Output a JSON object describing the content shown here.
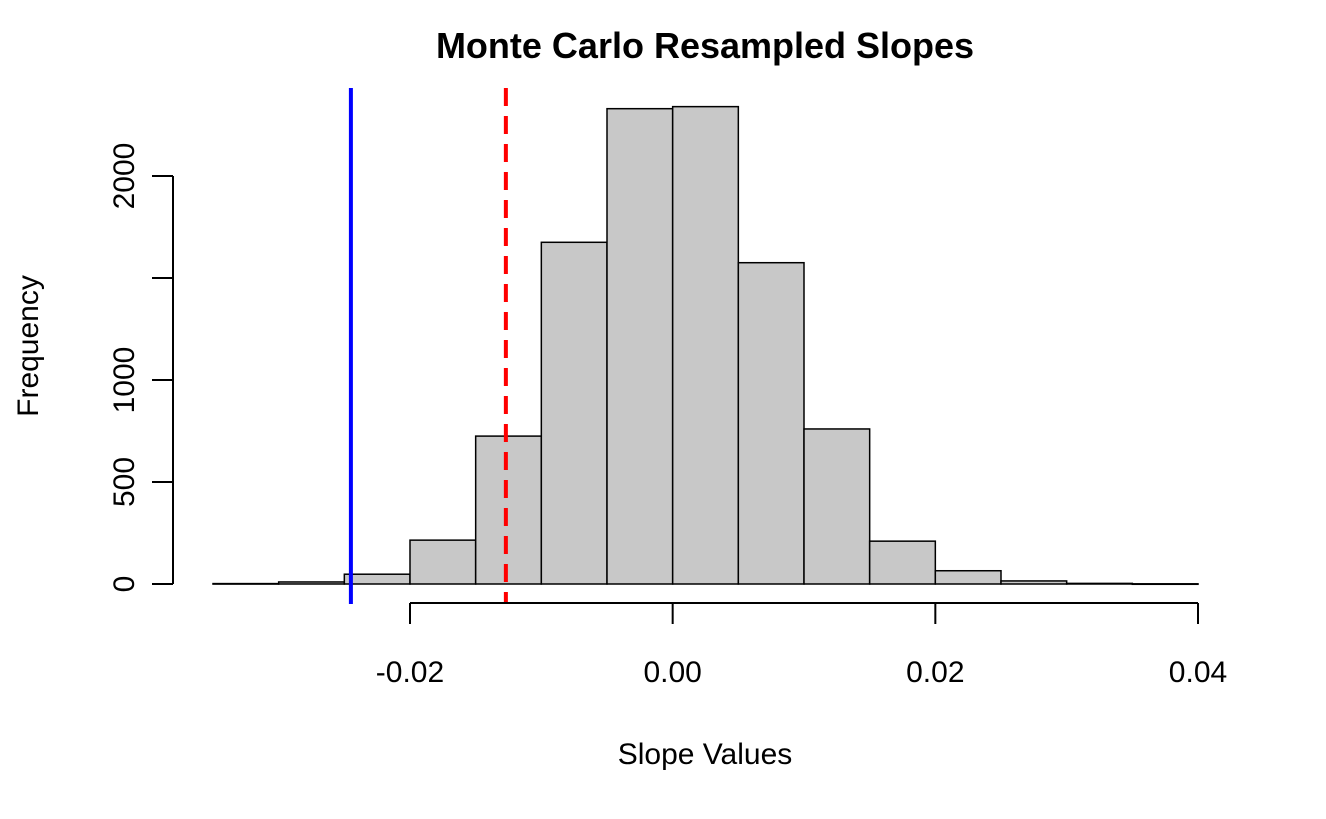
{
  "chart_data": {
    "type": "bar",
    "title": "Monte Carlo Resampled Slopes",
    "xlabel": "Slope Values",
    "ylabel": "Frequency",
    "bin_width": 0.005,
    "bins": [
      {
        "x_start": -0.035,
        "x_end": -0.03,
        "count": 2
      },
      {
        "x_start": -0.03,
        "x_end": -0.025,
        "count": 10
      },
      {
        "x_start": -0.025,
        "x_end": -0.02,
        "count": 48
      },
      {
        "x_start": -0.02,
        "x_end": -0.015,
        "count": 215
      },
      {
        "x_start": -0.015,
        "x_end": -0.01,
        "count": 725
      },
      {
        "x_start": -0.01,
        "x_end": -0.005,
        "count": 1675
      },
      {
        "x_start": -0.005,
        "x_end": 0.0,
        "count": 2330
      },
      {
        "x_start": 0.0,
        "x_end": 0.005,
        "count": 2340
      },
      {
        "x_start": 0.005,
        "x_end": 0.01,
        "count": 1575
      },
      {
        "x_start": 0.01,
        "x_end": 0.015,
        "count": 760
      },
      {
        "x_start": 0.015,
        "x_end": 0.02,
        "count": 210
      },
      {
        "x_start": 0.02,
        "x_end": 0.025,
        "count": 65
      },
      {
        "x_start": 0.025,
        "x_end": 0.03,
        "count": 15
      },
      {
        "x_start": 0.03,
        "x_end": 0.035,
        "count": 3
      },
      {
        "x_start": 0.035,
        "x_end": 0.04,
        "count": 1
      }
    ],
    "x_ticks": [
      {
        "value": -0.02,
        "label": "-0.02"
      },
      {
        "value": 0.0,
        "label": "0.00"
      },
      {
        "value": 0.02,
        "label": "0.02"
      },
      {
        "value": 0.04,
        "label": "0.04"
      }
    ],
    "y_ticks": [
      {
        "value": 0,
        "label": "0"
      },
      {
        "value": 500,
        "label": "500"
      },
      {
        "value": 1000,
        "label": "1000"
      },
      {
        "value": 1500,
        "label": ""
      },
      {
        "value": 2000,
        "label": "2000"
      }
    ],
    "xlim": [
      -0.035,
      0.04
    ],
    "ylim": [
      0,
      2350
    ],
    "vertical_lines": [
      {
        "name": "observed-slope",
        "x": -0.0245,
        "color": "#0000ff",
        "style": "solid"
      },
      {
        "name": "reference-slope",
        "x": -0.0127,
        "color": "#ff0000",
        "style": "dashed"
      }
    ],
    "bar_fill": "#c8c8c8",
    "bar_stroke": "#000000",
    "grid": false,
    "legend": "none"
  }
}
